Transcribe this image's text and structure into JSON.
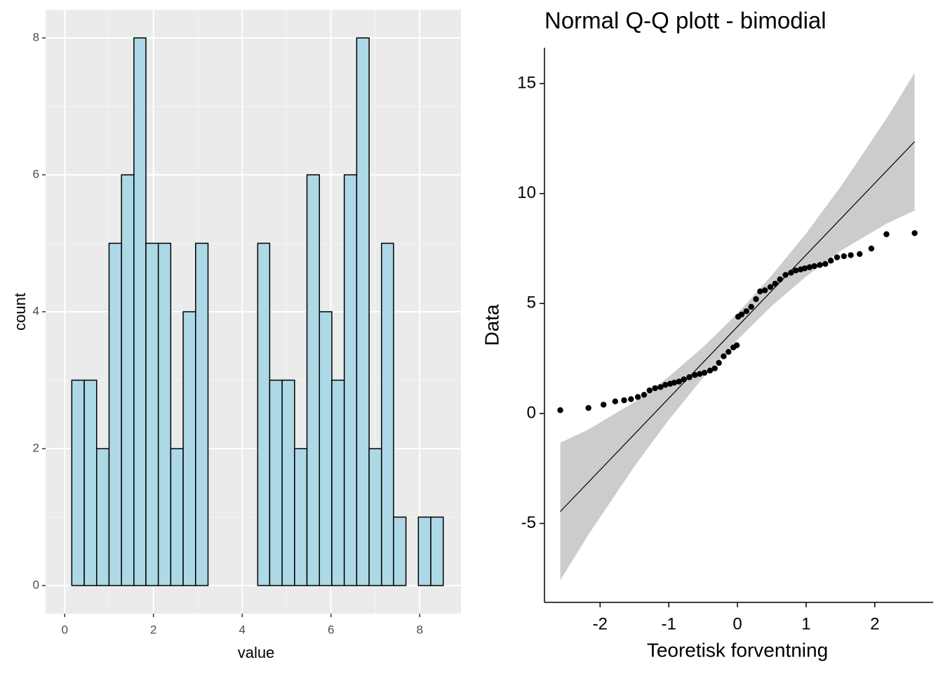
{
  "chart_data": [
    {
      "type": "histogram",
      "x_label": "value",
      "y_label": "count",
      "color": "#add8e6",
      "edge_color": "#000000",
      "bins": [
        0.16,
        0.44,
        0.72,
        1.0,
        1.28,
        1.56,
        1.83,
        2.11,
        2.39,
        2.67,
        2.95,
        3.23,
        3.51,
        3.79,
        4.07,
        4.35,
        4.62,
        4.9,
        5.18,
        5.46,
        5.74,
        6.02,
        6.3,
        6.58,
        6.86,
        7.14,
        7.41,
        7.69,
        7.97,
        8.25,
        8.53
      ],
      "values": [
        3,
        3,
        2,
        5,
        6,
        8,
        5,
        5,
        2,
        4,
        5,
        0,
        0,
        0,
        0,
        5,
        3,
        3,
        2,
        6,
        4,
        3,
        6,
        8,
        2,
        5,
        1,
        0,
        1,
        1
      ],
      "xlim": [
        -0.43,
        8.93
      ],
      "ylim": [
        -0.41,
        8.41
      ],
      "xticks": [
        0,
        2,
        4,
        6,
        8
      ],
      "yticks": [
        0,
        2,
        4,
        6,
        8
      ],
      "grid": true
    },
    {
      "type": "qq",
      "title": "Normal Q-Q plott - bimodial",
      "x_label": "Teoretisk forventning",
      "y_label": "Data",
      "color": "#000000",
      "band_color": "#cccccc",
      "x": [
        -2.58,
        -2.17,
        -1.95,
        -1.78,
        -1.65,
        -1.55,
        -1.45,
        -1.36,
        -1.28,
        -1.2,
        -1.12,
        -1.05,
        -0.98,
        -0.92,
        -0.85,
        -0.78,
        -0.7,
        -0.62,
        -0.55,
        -0.48,
        -0.4,
        -0.33,
        -0.27,
        -0.2,
        -0.13,
        -0.06,
        -0.01,
        0.01,
        0.06,
        0.13,
        0.2,
        0.27,
        0.33,
        0.4,
        0.48,
        0.55,
        0.62,
        0.7,
        0.78,
        0.85,
        0.92,
        0.98,
        1.05,
        1.12,
        1.2,
        1.28,
        1.36,
        1.45,
        1.55,
        1.65,
        1.78,
        1.95,
        2.17,
        2.58
      ],
      "y": [
        0.15,
        0.25,
        0.4,
        0.55,
        0.6,
        0.65,
        0.75,
        0.85,
        1.05,
        1.15,
        1.2,
        1.3,
        1.35,
        1.4,
        1.45,
        1.55,
        1.65,
        1.75,
        1.8,
        1.85,
        1.95,
        2.05,
        2.3,
        2.6,
        2.8,
        3.0,
        3.1,
        4.4,
        4.5,
        4.65,
        4.85,
        5.2,
        5.55,
        5.6,
        5.75,
        5.9,
        6.1,
        6.3,
        6.4,
        6.5,
        6.55,
        6.6,
        6.65,
        6.7,
        6.75,
        6.8,
        6.95,
        7.1,
        7.15,
        7.2,
        7.25,
        7.5,
        8.15,
        8.2
      ],
      "reference_line": {
        "x": [
          -2.58,
          2.58
        ],
        "y": [
          -4.46,
          12.36
        ]
      },
      "band": {
        "x": [
          -2.58,
          -2.17,
          -1.5,
          -1,
          -0.5,
          0,
          0.5,
          1,
          1.5,
          2.17,
          2.58
        ],
        "upper": [
          -1.33,
          -0.73,
          0.52,
          1.67,
          3.02,
          4.55,
          6.28,
          8.19,
          10.3,
          13.41,
          15.49
        ],
        "lower": [
          -7.59,
          -5.51,
          -2.4,
          -0.29,
          1.63,
          3.35,
          4.89,
          6.23,
          7.39,
          8.63,
          9.23
        ]
      },
      "xlim": [
        -2.81,
        2.85
      ],
      "ylim": [
        -8.59,
        16.63
      ],
      "xticks": [
        -2,
        -1,
        0,
        1,
        2
      ],
      "yticks": [
        -5,
        0,
        5,
        10,
        15
      ]
    }
  ]
}
